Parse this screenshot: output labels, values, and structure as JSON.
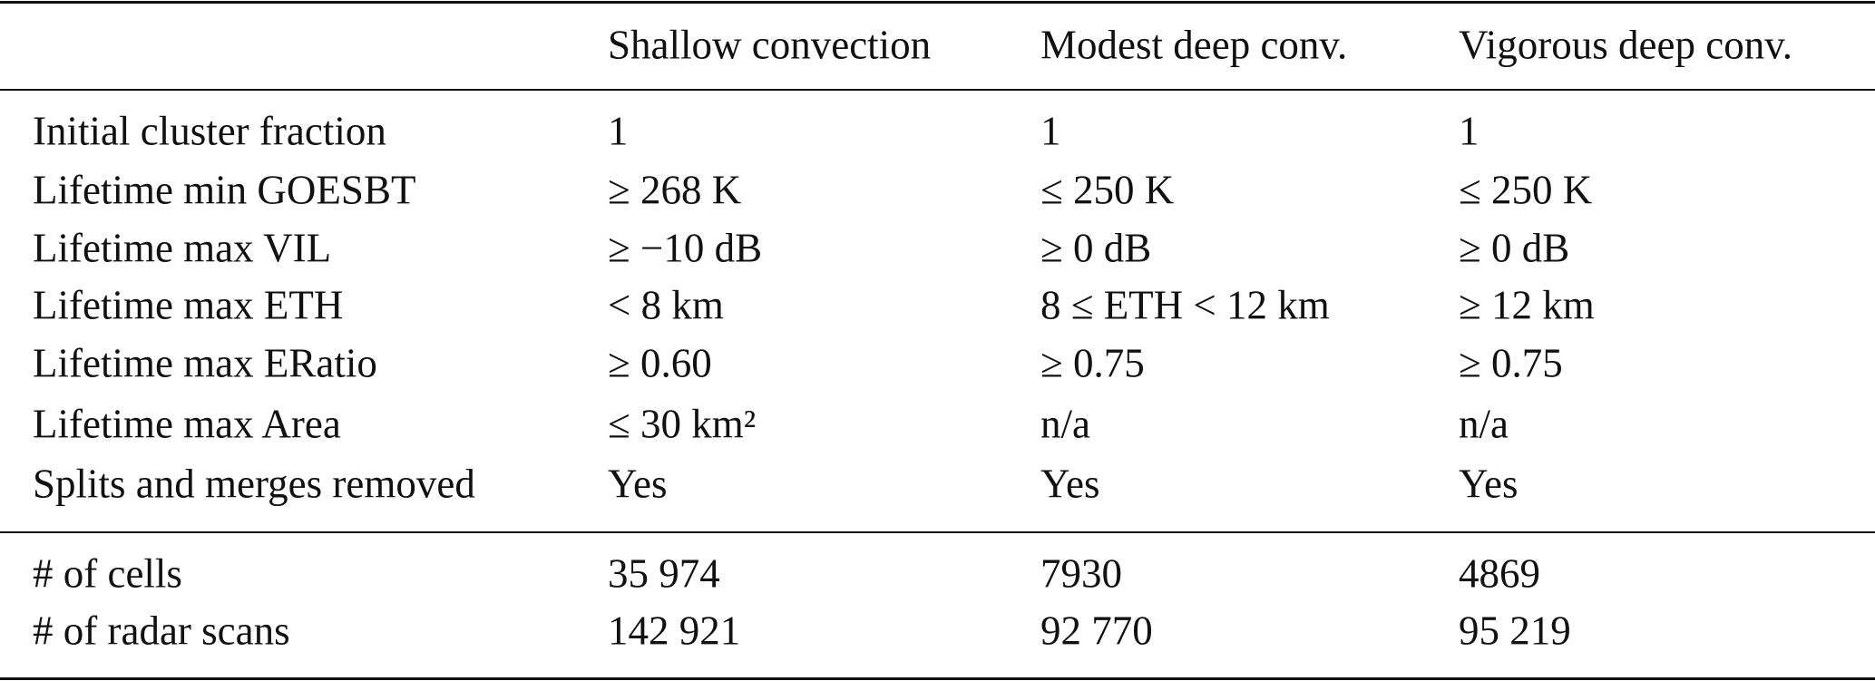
{
  "table": {
    "columns": [
      "",
      "Shallow convection",
      "Modest deep conv.",
      "Vigorous deep conv."
    ],
    "rows": [
      [
        "Initial cluster fraction",
        "1",
        "1",
        "1"
      ],
      [
        "Lifetime min GOESBT",
        "≥ 268 K",
        "≤ 250 K",
        "≤ 250 K"
      ],
      [
        "Lifetime max VIL",
        "≥ −10 dB",
        "≥ 0 dB",
        "≥ 0 dB"
      ],
      [
        "Lifetime max ETH",
        "< 8 km",
        "8 ≤ ETH < 12 km",
        "≥ 12 km"
      ],
      [
        "Lifetime max ERatio",
        "≥ 0.60",
        "≥ 0.75",
        "≥ 0.75"
      ],
      [
        "Lifetime max Area",
        "≤ 30 km²",
        "n/a",
        "n/a"
      ],
      [
        "Splits and merges removed",
        "Yes",
        "Yes",
        "Yes"
      ]
    ],
    "summary": [
      [
        "# of cells",
        "35 974",
        "7930",
        "4869"
      ],
      [
        "# of radar scans",
        "142 921",
        "92 770",
        "95 219"
      ]
    ]
  }
}
